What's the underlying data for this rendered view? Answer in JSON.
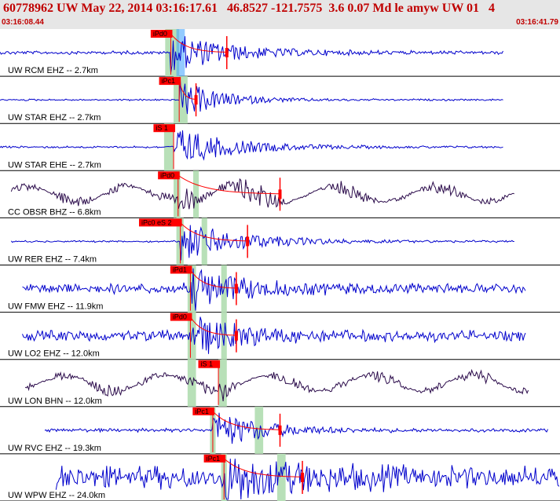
{
  "header": {
    "title": "60778962 UW May 22, 2014 03:16:17.61   46.8527 -121.7575  3.6 0.07 Md le amyw UW 01   4",
    "start_time": "03:16:08.44",
    "end_time": "03:16:41.79"
  },
  "colors": {
    "trace_blue": "#0000cc",
    "trace_dark": "#2a0a4a",
    "pick_red": "#ff0000",
    "window_green": "#b8e0b8",
    "window_blue": "#3aa0ff",
    "header_bg": "#e6e6e6",
    "header_text": "#c00000"
  },
  "chart_data": {
    "type": "line",
    "time_range": [
      "03:16:08.44",
      "03:16:41.79"
    ],
    "traces": [
      {
        "label": "UW RCM EHZ -- 2.7km",
        "pick_label": "iPd0",
        "color": "blue",
        "amplitude": 0.1,
        "coda": 0.35,
        "data_start": 0.0,
        "data_end": 0.9,
        "pick_frac": 0.305,
        "s_frac": 0.405,
        "green_windows": [
          0.295,
          0.32
        ],
        "blue_windows": [
          0.315,
          0.33
        ]
      },
      {
        "label": "UW STAR EHZ -- 2.7km",
        "pick_label": "iPc1",
        "color": "blue",
        "amplitude": 0.05,
        "coda": 0.25,
        "data_start": 0.0,
        "data_end": 0.9,
        "pick_frac": 0.32,
        "s_frac": 0.35,
        "green_windows": [
          0.31,
          0.335
        ],
        "blue_windows": []
      },
      {
        "label": "UW STAR EHE -- 2.7km",
        "pick_label": "iS 1",
        "color": "blue",
        "amplitude": 0.06,
        "coda": 0.35,
        "data_start": 0.0,
        "data_end": 0.9,
        "pick_frac": 0.31,
        "s_frac": null,
        "green_windows": [
          0.293,
          0.31
        ],
        "blue_windows": []
      },
      {
        "label": "CC OBSR BHZ -- 6.8km",
        "pick_label": "iPd0",
        "color": "dark",
        "amplitude": 0.12,
        "coda": 0.6,
        "data_start": 0.02,
        "data_end": 0.92,
        "pick_frac": 0.318,
        "s_frac": 0.5,
        "green_windows": [
          0.31,
          0.322,
          0.345,
          0.355
        ],
        "blue_windows": []
      },
      {
        "label": "UW RER EHZ -- 7.4km",
        "pick_label": "iPc0 eS 2",
        "color": "blue",
        "amplitude": 0.05,
        "coda": 0.4,
        "data_start": 0.02,
        "data_end": 0.92,
        "pick_frac": 0.322,
        "s_frac": 0.442,
        "green_windows": [
          0.315,
          0.328,
          0.36,
          0.37
        ],
        "blue_windows": []
      },
      {
        "label": "UW FMW EHZ -- 11.9km",
        "pick_label": "iPd1",
        "color": "blue",
        "amplitude": 0.3,
        "coda": 0.3,
        "data_start": 0.04,
        "data_end": 0.94,
        "pick_frac": 0.34,
        "s_frac": 0.422,
        "green_windows": [
          0.335,
          0.35,
          0.395,
          0.405
        ],
        "blue_windows": []
      },
      {
        "label": "UW LO2 EHZ -- 12.0km",
        "pick_label": "iPd0",
        "color": "blue",
        "amplitude": 0.3,
        "coda": 0.3,
        "data_start": 0.04,
        "data_end": 0.94,
        "pick_frac": 0.34,
        "s_frac": 0.422,
        "green_windows": [
          0.335,
          0.35,
          0.395,
          0.405
        ],
        "blue_windows": []
      },
      {
        "label": "UW LON BHN -- 12.0km",
        "pick_label": "iS 1",
        "color": "dark",
        "amplitude": 0.15,
        "coda": 0.15,
        "data_start": 0.045,
        "data_end": 0.945,
        "pick_frac": 0.39,
        "s_frac": null,
        "green_windows": [
          0.335,
          0.35,
          0.39,
          0.405
        ],
        "blue_windows": []
      },
      {
        "label": "UW RVC EHZ -- 19.3km",
        "pick_label": "iPc1",
        "color": "blue",
        "amplitude": 0.1,
        "coda": 0.3,
        "data_start": 0.08,
        "data_end": 0.98,
        "pick_frac": 0.38,
        "s_frac": 0.5,
        "green_windows": [
          0.375,
          0.385,
          0.455,
          0.47
        ],
        "blue_windows": []
      },
      {
        "label": "UW WPW EHZ -- 24.0km",
        "pick_label": "iPc1",
        "color": "blue",
        "amplitude": 0.65,
        "coda": 0.35,
        "data_start": 0.1,
        "data_end": 1.0,
        "pick_frac": 0.4,
        "s_frac": 0.54,
        "green_windows": [
          0.395,
          0.405,
          0.495,
          0.51
        ],
        "blue_windows": []
      }
    ]
  }
}
